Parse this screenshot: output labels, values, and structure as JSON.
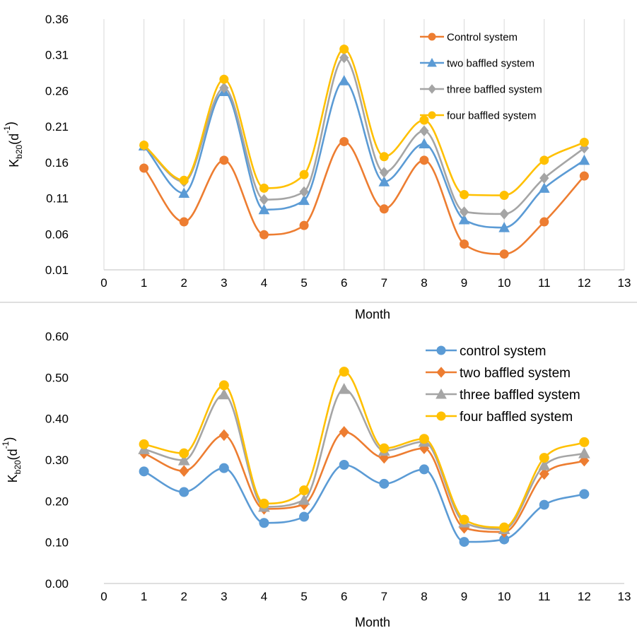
{
  "chart_data": [
    {
      "type": "line",
      "title": "",
      "xlabel": "Month",
      "ylabel": {
        "base": "K",
        "sub": "b20",
        "unit": "(d",
        "sup": "-1",
        "close": ")"
      },
      "xlim": [
        0,
        13
      ],
      "ylim": [
        0.01,
        0.36
      ],
      "xticks": [
        0,
        1,
        2,
        3,
        4,
        5,
        6,
        7,
        8,
        9,
        10,
        11,
        12,
        13
      ],
      "yticks": [
        0.01,
        0.06,
        0.11,
        0.16,
        0.21,
        0.26,
        0.31,
        0.36
      ],
      "ytick_labels": [
        "0.01",
        "0.06",
        "0.11",
        "0.16",
        "0.21",
        "0.26",
        "0.31",
        "0.36"
      ],
      "grid": "vertical",
      "legend_position": "top-right",
      "x": [
        1,
        2,
        3,
        4,
        5,
        6,
        7,
        8,
        9,
        10,
        11,
        12
      ],
      "series": [
        {
          "name": "Control system",
          "color": "#ED7D31",
          "marker": "circle",
          "values": [
            0.152,
            0.077,
            0.163,
            0.059,
            0.072,
            0.189,
            0.095,
            0.163,
            0.046,
            0.032,
            0.077,
            0.141
          ]
        },
        {
          "name": "two baffled system",
          "color": "#5B9BD5",
          "marker": "triangle",
          "values": [
            0.183,
            0.117,
            0.259,
            0.094,
            0.107,
            0.274,
            0.133,
            0.186,
            0.08,
            0.069,
            0.124,
            0.163
          ]
        },
        {
          "name": "three baffled system",
          "color": "#A5A5A5",
          "marker": "diamond",
          "values": [
            0.183,
            0.133,
            0.264,
            0.108,
            0.119,
            0.306,
            0.146,
            0.204,
            0.091,
            0.088,
            0.138,
            0.18
          ]
        },
        {
          "name": "four baffled system",
          "color": "#FFC000",
          "marker": "circle",
          "values": [
            0.184,
            0.135,
            0.276,
            0.124,
            0.143,
            0.318,
            0.168,
            0.219,
            0.115,
            0.114,
            0.163,
            0.188
          ]
        }
      ]
    },
    {
      "type": "line",
      "title": "",
      "xlabel": "Month",
      "ylabel": {
        "base": "K",
        "sub": "b20",
        "unit": "(d",
        "sup": "-1",
        "close": ")"
      },
      "xlim": [
        0,
        13
      ],
      "ylim": [
        0,
        0.6
      ],
      "xticks": [
        0,
        1,
        2,
        3,
        4,
        5,
        6,
        7,
        8,
        9,
        10,
        11,
        12,
        13
      ],
      "yticks": [
        0,
        0.1,
        0.2,
        0.3,
        0.4,
        0.5,
        0.6
      ],
      "ytick_labels": [
        "0.00",
        "0.10",
        "0.20",
        "0.30",
        "0.40",
        "0.50",
        "0.60"
      ],
      "grid": "none",
      "legend_position": "top-right",
      "x": [
        1,
        2,
        3,
        4,
        5,
        6,
        7,
        8,
        9,
        10,
        11,
        12
      ],
      "series": [
        {
          "name": "control system",
          "color": "#5B9BD5",
          "marker": "circle",
          "values": [
            0.272,
            0.222,
            0.28,
            0.147,
            0.162,
            0.288,
            0.242,
            0.277,
            0.101,
            0.107,
            0.191,
            0.217
          ]
        },
        {
          "name": "two baffled system",
          "color": "#ED7D31",
          "marker": "diamond",
          "values": [
            0.316,
            0.273,
            0.36,
            0.181,
            0.192,
            0.368,
            0.305,
            0.328,
            0.135,
            0.125,
            0.266,
            0.298
          ]
        },
        {
          "name": "three baffled system",
          "color": "#A5A5A5",
          "marker": "triangle",
          "values": [
            0.326,
            0.299,
            0.459,
            0.186,
            0.203,
            0.472,
            0.322,
            0.344,
            0.148,
            0.132,
            0.287,
            0.316
          ]
        },
        {
          "name": "four baffled system",
          "color": "#FFC000",
          "marker": "circle",
          "values": [
            0.338,
            0.316,
            0.481,
            0.194,
            0.226,
            0.514,
            0.328,
            0.351,
            0.155,
            0.136,
            0.305,
            0.343
          ]
        }
      ]
    }
  ]
}
